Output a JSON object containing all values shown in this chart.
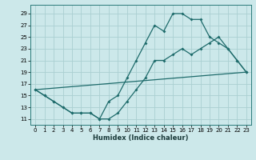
{
  "xlabel": "Humidex (Indice chaleur)",
  "bg_color": "#cce8ea",
  "grid_color": "#aacfd2",
  "line_color": "#1e6b6b",
  "xlim": [
    -0.5,
    23.5
  ],
  "ylim": [
    10.0,
    30.5
  ],
  "xticks": [
    0,
    1,
    2,
    3,
    4,
    5,
    6,
    7,
    8,
    9,
    10,
    11,
    12,
    13,
    14,
    15,
    16,
    17,
    18,
    19,
    20,
    21,
    22,
    23
  ],
  "yticks": [
    11,
    13,
    15,
    17,
    19,
    21,
    23,
    25,
    27,
    29
  ],
  "line1_x": [
    0,
    1,
    2,
    3,
    4,
    5,
    6,
    7,
    8,
    9,
    10,
    11,
    12,
    13,
    14,
    15,
    16,
    17,
    18,
    19,
    20,
    21,
    22,
    23
  ],
  "line1_y": [
    16,
    15,
    14,
    13,
    12,
    12,
    12,
    11,
    11,
    12,
    14,
    16,
    18,
    21,
    21,
    22,
    23,
    22,
    23,
    24,
    25,
    23,
    21,
    19
  ],
  "line2_x": [
    0,
    1,
    2,
    3,
    4,
    5,
    6,
    7,
    8,
    9,
    10,
    11,
    12,
    13,
    14,
    15,
    16,
    17,
    18,
    19,
    20,
    21,
    22,
    23
  ],
  "line2_y": [
    16,
    15,
    14,
    13,
    12,
    12,
    12,
    11,
    14,
    15,
    18,
    21,
    24,
    27,
    26,
    29,
    29,
    28,
    28,
    25,
    24,
    23,
    21,
    19
  ],
  "line3_x": [
    0,
    23
  ],
  "line3_y": [
    16,
    19
  ]
}
